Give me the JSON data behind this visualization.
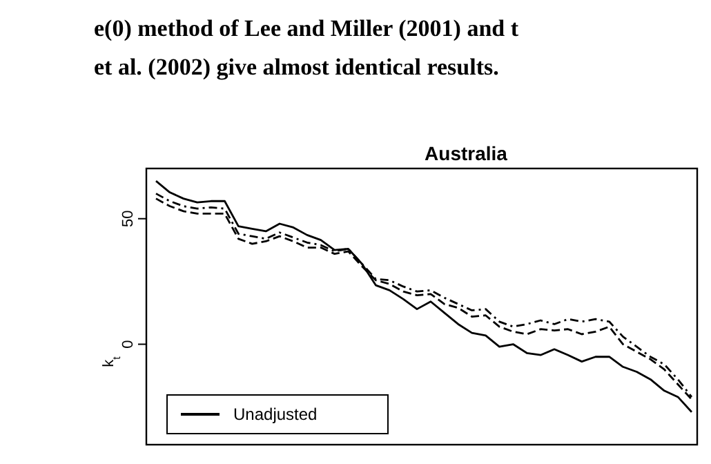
{
  "chart_data": {
    "type": "line",
    "title": "Australia",
    "ylabel": "k$_{t}$",
    "annotations": [
      "e(0) method of Lee and Miller (2001) and t",
      "et al. (2002) give almost identical results."
    ],
    "categories": [
      null,
      null,
      null,
      null,
      null,
      null,
      null,
      null,
      null,
      null,
      null,
      null,
      null,
      null,
      null,
      null,
      null,
      null,
      null,
      null,
      null,
      null,
      null,
      null,
      null,
      null,
      null,
      null,
      null,
      null,
      null,
      null,
      null,
      null,
      null,
      null,
      null,
      null,
      null,
      null
    ],
    "series": [
      {
        "name": "Unadjusted",
        "color": "#000000",
        "line_style": "solid",
        "values": [
          65,
          60.5,
          58,
          56.5,
          57,
          57,
          47,
          46,
          45,
          48,
          46.5,
          43.5,
          41.5,
          37.5,
          38,
          32,
          23.5,
          21.5,
          18,
          14,
          17,
          12.5,
          8,
          4.5,
          3.5,
          -1,
          0,
          -3.5,
          -4.3,
          -2,
          -4.3,
          -6.9,
          -5,
          -5,
          -9,
          -11,
          -14,
          -18.5,
          -21,
          -27
        ]
      },
      {
        "color": "#000000",
        "line_style": "dashed",
        "values": [
          58,
          55,
          53,
          52,
          52,
          52,
          42,
          40,
          41,
          43,
          41,
          38.5,
          38.5,
          36,
          37,
          31,
          25.5,
          24,
          21,
          19.5,
          20,
          16,
          14.5,
          11,
          11.5,
          7,
          5,
          4,
          6,
          5.5,
          6,
          4,
          5,
          7,
          0,
          -3,
          -6,
          -10,
          -16,
          -22
        ]
      },
      {
        "color": "#000000",
        "line_style": "dotted",
        "values": [
          60,
          57,
          55,
          54,
          54.5,
          54,
          44,
          43,
          42,
          44.5,
          42.5,
          40.5,
          39.5,
          37,
          38,
          32,
          26,
          25.5,
          23,
          21,
          21.5,
          18.5,
          16,
          13.5,
          14,
          9,
          7,
          8,
          9.5,
          8,
          10,
          9,
          10,
          9,
          3,
          -1,
          -5,
          -8,
          -14,
          -21
        ]
      }
    ],
    "ylim": [
      -40,
      70
    ],
    "yticks": [
      0,
      50
    ],
    "tick_labels": "y",
    "grid": false,
    "legend": "bottom left"
  }
}
